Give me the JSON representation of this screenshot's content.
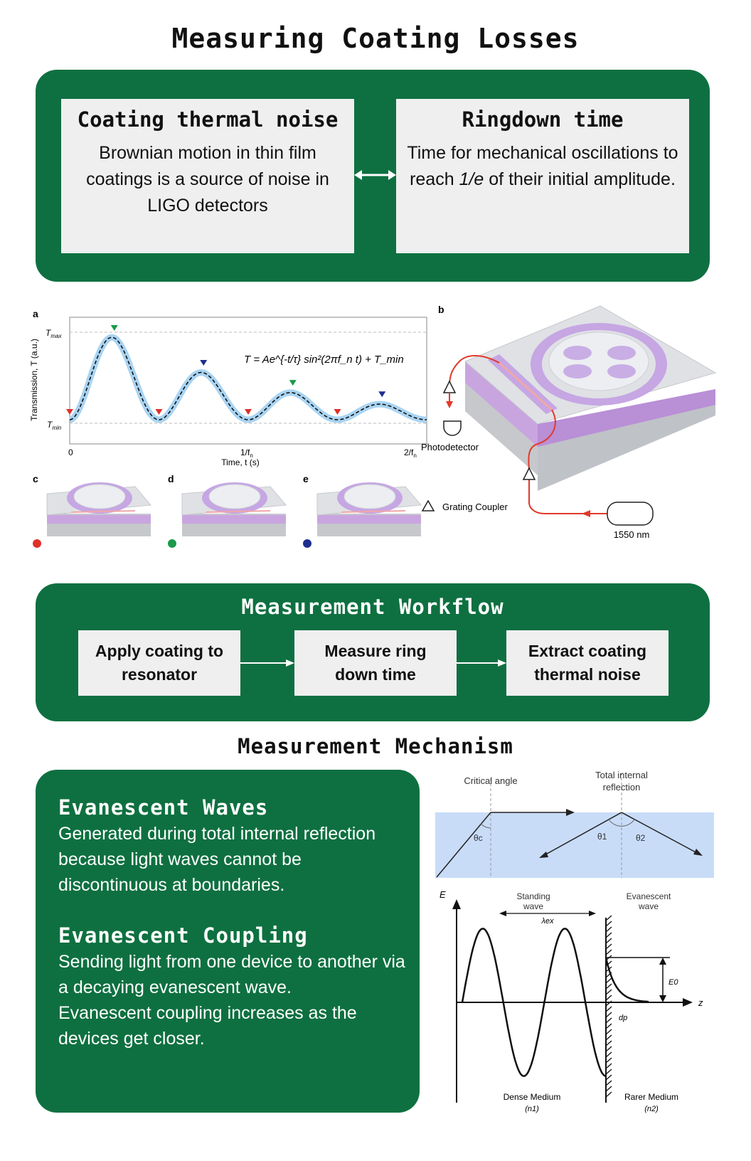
{
  "title": "Measuring Coating Losses",
  "top_panel": {
    "left": {
      "title": "Coating thermal noise",
      "body": "Brownian motion in thin film coatings is a source of noise in LIGO detectors"
    },
    "right": {
      "title": "Ringdown time",
      "body_pre": "Time for mechanical oscillations to reach ",
      "body_em": "1/e",
      "body_post": " of their initial amplitude."
    }
  },
  "figure_a": {
    "label": "a",
    "ylabel": "Transmission, T (a.u.)",
    "xlabel": "Time, t (s)",
    "ytick_max": "T",
    "ytick_max_sub": "max",
    "ytick_min": "T",
    "ytick_min_sub": "min",
    "xtick_0": "0",
    "xtick_1": "1/f",
    "xtick_1_sub": "n",
    "xtick_2": "2/f",
    "xtick_2_sub": "n",
    "equation": "T = Ae^{-t/τ} sin²(2πf_n t) + T_min"
  },
  "figure_b": {
    "label": "b",
    "photodetector": "Photodetector",
    "grating_coupler": "Grating Coupler",
    "laser": "1550 nm"
  },
  "figure_cde": {
    "labels": [
      "c",
      "d",
      "e"
    ],
    "dot_colors": [
      "#e0302a",
      "#1a9a4a",
      "#1e2f8e"
    ]
  },
  "workflow": {
    "title": "Measurement Workflow",
    "steps": [
      "Apply coating to resonator",
      "Measure ring down time",
      "Extract coating thermal noise"
    ]
  },
  "mechanism": {
    "title": "Measurement Mechanism",
    "sections": [
      {
        "heading": "Evanescent Waves",
        "paragraphs": [
          "Generated during total internal reflection because light waves cannot be discontinuous at boundaries."
        ]
      },
      {
        "heading": "Evanescent Coupling",
        "paragraphs": [
          "Sending light from one device to another via a decaying evanescent wave.",
          "Evanescent coupling increases as the devices get closer."
        ]
      }
    ],
    "tir_diagram": {
      "critical_angle": "Critical angle",
      "tir_line1": "Total internal",
      "tir_line2": "reflection",
      "theta_c": "θc",
      "theta_1": "θ1",
      "theta_2": "θ2"
    },
    "wave_diagram": {
      "e_axis": "E",
      "z_axis": "z",
      "standing_1": "Standing",
      "standing_2": "wave",
      "evanescent_1": "Evanescent",
      "evanescent_2": "wave",
      "lambda": "λex",
      "e0": "E0",
      "dp": "dp",
      "dense": "Dense Medium",
      "dense_n": "(n1)",
      "rarer": "Rarer Medium",
      "rarer_n": "(n2)"
    }
  }
}
